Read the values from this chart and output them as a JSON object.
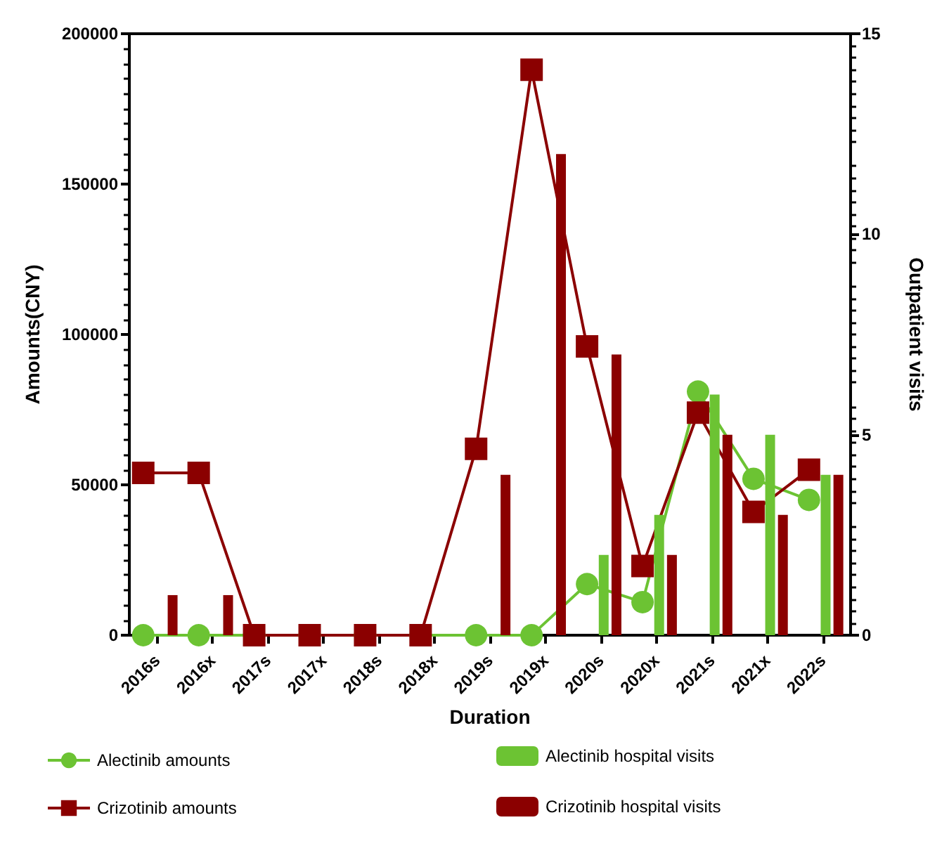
{
  "chart_data": {
    "type": "line",
    "xlabel": "Duration",
    "ylabel": "Amounts(CNY)",
    "y2label": "Outpatient visits",
    "categories": [
      "2016s",
      "2016x",
      "2017s",
      "2017x",
      "2018s",
      "2018x",
      "2019s",
      "2019x",
      "2020s",
      "2020x",
      "2021s",
      "2021x",
      "2022s"
    ],
    "series": [
      {
        "name": "Alectinib amounts",
        "marker": "circle",
        "color": "#6cc333",
        "values": [
          0,
          0,
          0,
          0,
          0,
          0,
          0,
          0,
          17000,
          11000,
          81000,
          52000,
          45000
        ]
      },
      {
        "name": "Crizotinib amounts",
        "marker": "square",
        "color": "#8b0000",
        "values": [
          54000,
          54000,
          0,
          0,
          0,
          0,
          62000,
          188000,
          96000,
          23000,
          74000,
          41000,
          55000
        ]
      },
      {
        "name": "Alectinib hospital visits",
        "type": "bar",
        "axis": "y2",
        "color": "#6cc333",
        "values": [
          0,
          0,
          0,
          0,
          0,
          0,
          0,
          0,
          2,
          3,
          6,
          5,
          4
        ]
      },
      {
        "name": "Crizotinib hospital visits",
        "type": "bar",
        "axis": "y2",
        "color": "#8b0000",
        "values": [
          1,
          1,
          0,
          0,
          0,
          0,
          4,
          12,
          7,
          2,
          5,
          3,
          4
        ]
      }
    ],
    "ylim": [
      0,
      200000
    ],
    "yticks": [
      0,
      50000,
      100000,
      150000,
      200000
    ],
    "y2lim": [
      0,
      15
    ],
    "y2ticks": [
      0,
      5,
      10,
      15
    ],
    "grid": false,
    "legend": "bottom"
  }
}
